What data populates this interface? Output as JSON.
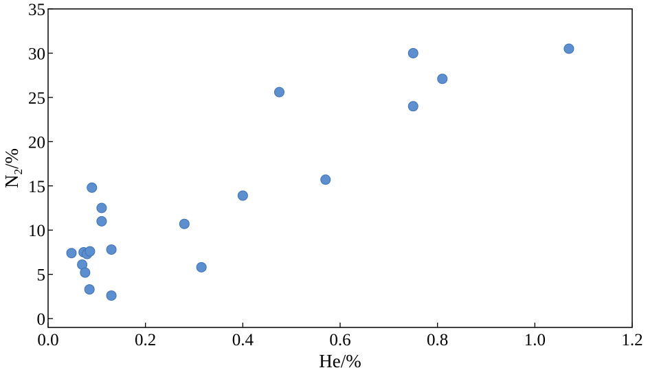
{
  "chart_data": {
    "type": "scatter",
    "title": "",
    "xlabel": "He/%",
    "ylabel_main": "N",
    "ylabel_sub": "2",
    "ylabel_tail": "/%",
    "xlim": [
      0.0,
      1.2
    ],
    "ylim": [
      -1,
      35
    ],
    "xticks": [
      0.0,
      0.2,
      0.4,
      0.6,
      0.8,
      1.0,
      1.2
    ],
    "xtick_labels": [
      "0.0",
      "0.2",
      "0.4",
      "0.6",
      "0.8",
      "1.0",
      "1.2"
    ],
    "yticks": [
      0,
      5,
      10,
      15,
      20,
      25,
      30,
      35
    ],
    "ytick_labels": [
      "0",
      "5",
      "10",
      "15",
      "20",
      "25",
      "30",
      "35"
    ],
    "grid": false,
    "marker_color": "#5b8fd0",
    "points": [
      {
        "x": 0.048,
        "y": 7.4
      },
      {
        "x": 0.07,
        "y": 6.1
      },
      {
        "x": 0.073,
        "y": 7.5
      },
      {
        "x": 0.076,
        "y": 5.2
      },
      {
        "x": 0.08,
        "y": 7.3
      },
      {
        "x": 0.085,
        "y": 3.3
      },
      {
        "x": 0.086,
        "y": 7.6
      },
      {
        "x": 0.09,
        "y": 14.8
      },
      {
        "x": 0.11,
        "y": 12.5
      },
      {
        "x": 0.11,
        "y": 11.0
      },
      {
        "x": 0.13,
        "y": 7.8
      },
      {
        "x": 0.13,
        "y": 2.6
      },
      {
        "x": 0.28,
        "y": 10.7
      },
      {
        "x": 0.315,
        "y": 5.8
      },
      {
        "x": 0.4,
        "y": 13.9
      },
      {
        "x": 0.475,
        "y": 25.6
      },
      {
        "x": 0.57,
        "y": 15.7
      },
      {
        "x": 0.75,
        "y": 30.0
      },
      {
        "x": 0.75,
        "y": 24.0
      },
      {
        "x": 0.81,
        "y": 27.1
      },
      {
        "x": 1.07,
        "y": 30.5
      }
    ]
  }
}
